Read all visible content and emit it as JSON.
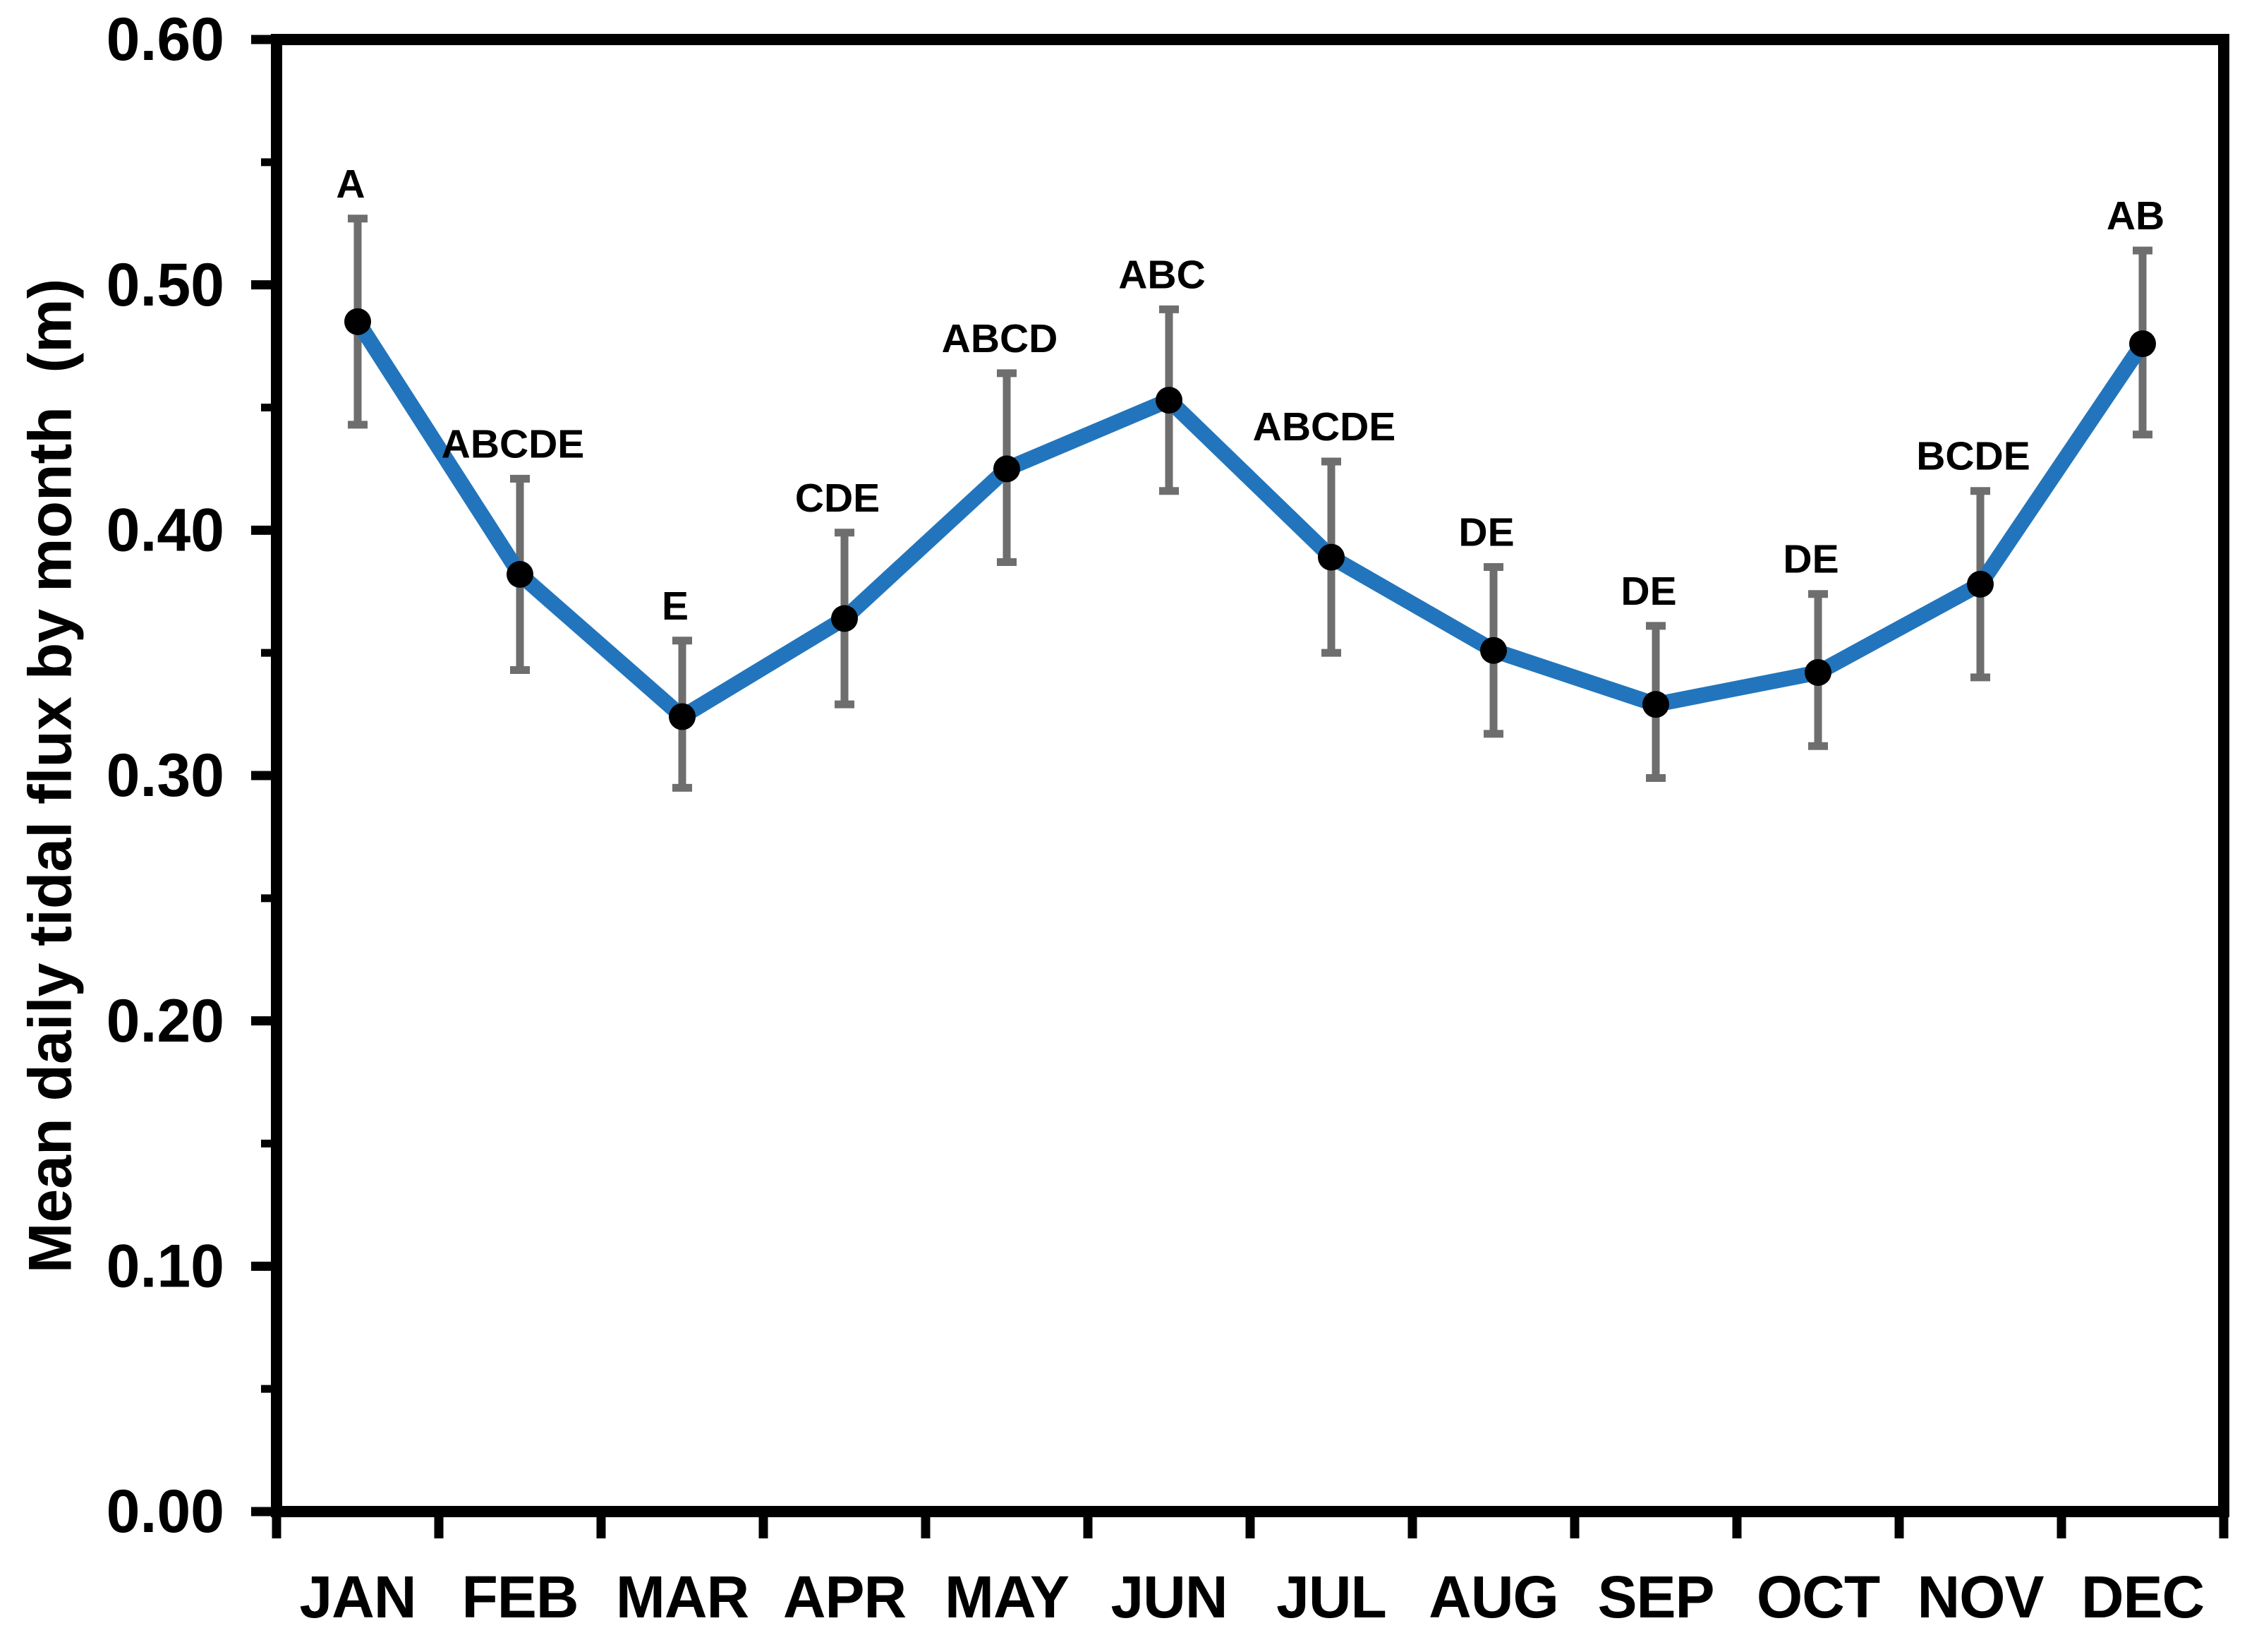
{
  "chart_data": {
    "type": "line",
    "title": "",
    "xlabel": "",
    "ylabel": "Mean daily tidal flux by month  (m)",
    "categories": [
      "JAN",
      "FEB",
      "MAR",
      "APR",
      "MAY",
      "JUN",
      "JUL",
      "AUG",
      "SEP",
      "OCT",
      "NOV",
      "DEC"
    ],
    "series": [
      {
        "name": "Mean daily tidal flux",
        "values": [
          0.485,
          0.382,
          0.324,
          0.364,
          0.425,
          0.453,
          0.389,
          0.351,
          0.329,
          0.342,
          0.378,
          0.476
        ],
        "error_upper": [
          0.527,
          0.421,
          0.355,
          0.399,
          0.464,
          0.49,
          0.428,
          0.385,
          0.361,
          0.374,
          0.416,
          0.514
        ],
        "error_lower": [
          0.443,
          0.343,
          0.295,
          0.329,
          0.387,
          0.416,
          0.35,
          0.317,
          0.299,
          0.312,
          0.34,
          0.439
        ]
      }
    ],
    "point_labels": [
      "A",
      "ABCDE",
      "E",
      "CDE",
      "ABCD",
      "ABC",
      "ABCDE",
      "DE",
      "DE",
      "DE",
      "BCDE",
      "AB"
    ],
    "ylim": [
      0.0,
      0.6
    ],
    "ytick_labels": [
      "0.00",
      "0.10",
      "0.20",
      "0.30",
      "0.40",
      "0.50",
      "0.60"
    ],
    "ytick_major_interval": 0.1,
    "ytick_minor_interval": 0.05,
    "grid": "off",
    "legend": "none",
    "marker": "filled-circle",
    "colors": {
      "line": "#2275bc",
      "marker": "#000000",
      "error_bar": "#6e6e6e",
      "axis": "#000000",
      "background": "#ffffff"
    }
  }
}
